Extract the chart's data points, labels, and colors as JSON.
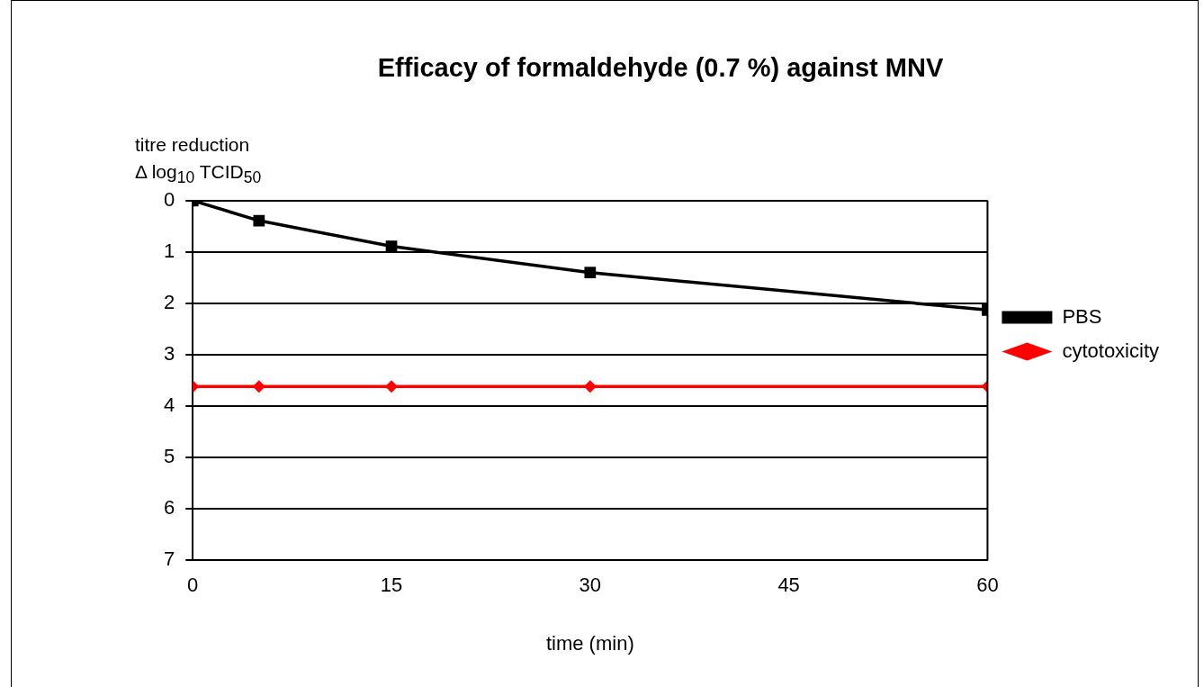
{
  "chart_data": {
    "type": "line",
    "title": "Efficacy of formaldehyde (0.7 %) against MNV",
    "xlabel": "time (min)",
    "ylabel": "titre reduction\nΔ log$_{10}$ TCID$_{50}$",
    "x": [
      0,
      5,
      15,
      30,
      60
    ],
    "series": [
      {
        "name": "PBS",
        "color": "#000000",
        "marker": "square",
        "values": [
          0,
          0.39,
          0.89,
          1.4,
          2.13
        ]
      },
      {
        "name": "cytotoxicity",
        "color": "#ff0000",
        "marker": "diamond",
        "values": [
          3.62,
          3.62,
          3.62,
          3.62,
          3.62
        ]
      }
    ],
    "xlim": [
      0,
      60
    ],
    "xticks": [
      0,
      15,
      30,
      45,
      60
    ],
    "ylim": [
      7,
      0
    ],
    "yticks": [
      0,
      1,
      2,
      3,
      4,
      5,
      6,
      7
    ],
    "grid": "y",
    "legend": "right",
    "line_style": "solid"
  }
}
